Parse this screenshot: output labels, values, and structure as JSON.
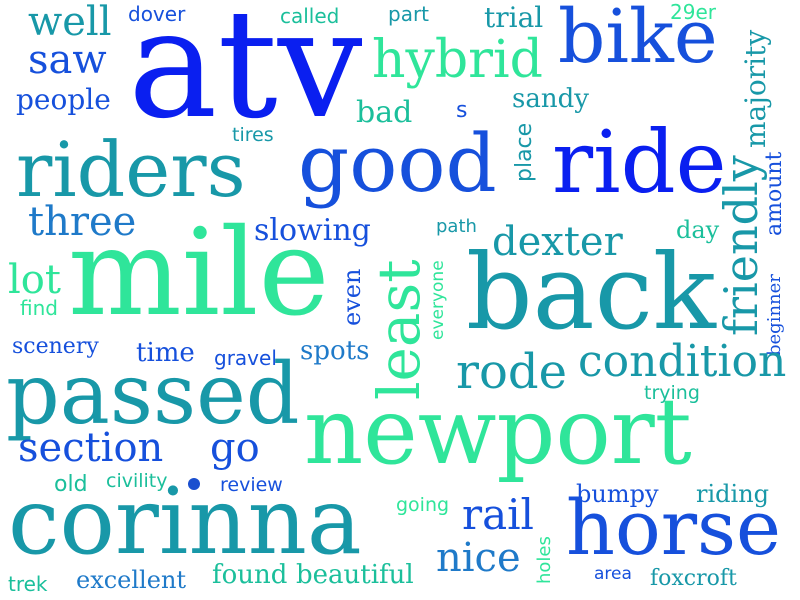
{
  "palette": {
    "blue": "#0a1ff0",
    "royal": "#1650dc",
    "azure": "#1f7ac9",
    "teal": "#1898a8",
    "sea": "#1bbf9b",
    "mint": "#2fe59a"
  },
  "words": [
    {
      "id": "atv",
      "text": "atv"
    },
    {
      "id": "newport",
      "text": "newport"
    },
    {
      "id": "mile",
      "text": "mile"
    },
    {
      "id": "back",
      "text": "back"
    },
    {
      "id": "corinna",
      "text": "corinna"
    },
    {
      "id": "passed",
      "text": "passed"
    },
    {
      "id": "ride",
      "text": "ride"
    },
    {
      "id": "good",
      "text": "good"
    },
    {
      "id": "riders",
      "text": "riders"
    },
    {
      "id": "horse",
      "text": "horse"
    },
    {
      "id": "bike",
      "text": "bike"
    },
    {
      "id": "least",
      "text": "least"
    },
    {
      "id": "hybrid",
      "text": "hybrid"
    },
    {
      "id": "condition",
      "text": "condition"
    },
    {
      "id": "rode",
      "text": "rode"
    },
    {
      "id": "section",
      "text": "section"
    },
    {
      "id": "friendly",
      "text": "friendly"
    },
    {
      "id": "three",
      "text": "three"
    },
    {
      "id": "dexter",
      "text": "dexter"
    },
    {
      "id": "nice",
      "text": "nice"
    },
    {
      "id": "rail",
      "text": "rail"
    },
    {
      "id": "go",
      "text": "go"
    },
    {
      "id": "saw",
      "text": "saw"
    },
    {
      "id": "well",
      "text": "well"
    },
    {
      "id": "majority",
      "text": "majority"
    },
    {
      "id": "lot",
      "text": "lot"
    },
    {
      "id": "slowing",
      "text": "slowing"
    },
    {
      "id": "people",
      "text": "people"
    },
    {
      "id": "bad",
      "text": "bad"
    },
    {
      "id": "sandy",
      "text": "sandy"
    },
    {
      "id": "trial",
      "text": "trial"
    },
    {
      "id": "place",
      "text": "place"
    },
    {
      "id": "amount",
      "text": "amount"
    },
    {
      "id": "spots",
      "text": "spots"
    },
    {
      "id": "time",
      "text": "time"
    },
    {
      "id": "scenery",
      "text": "scenery"
    },
    {
      "id": "even",
      "text": "even"
    },
    {
      "id": "bumpy",
      "text": "bumpy"
    },
    {
      "id": "riding",
      "text": "riding"
    },
    {
      "id": "beautiful",
      "text": "beautiful"
    },
    {
      "id": "found",
      "text": "found"
    },
    {
      "id": "excellent",
      "text": "excellent"
    },
    {
      "id": "foxcroft",
      "text": "foxcroft"
    },
    {
      "id": "beginner",
      "text": "beginner"
    },
    {
      "id": "day",
      "text": "day"
    },
    {
      "id": "dover",
      "text": "dover"
    },
    {
      "id": "called",
      "text": "called"
    },
    {
      "id": "part",
      "text": "part"
    },
    {
      "id": "29er",
      "text": "29er"
    },
    {
      "id": "tires",
      "text": "tires"
    },
    {
      "id": "s",
      "text": "s"
    },
    {
      "id": "path",
      "text": "path"
    },
    {
      "id": "everyone",
      "text": "everyone"
    },
    {
      "id": "find",
      "text": "find"
    },
    {
      "id": "gravel",
      "text": "gravel"
    },
    {
      "id": "trying",
      "text": "trying"
    },
    {
      "id": "old",
      "text": "old"
    },
    {
      "id": "civility",
      "text": "civility"
    },
    {
      "id": "review",
      "text": "review"
    },
    {
      "id": "going",
      "text": "going"
    },
    {
      "id": "holes",
      "text": "holes"
    },
    {
      "id": "area",
      "text": "area"
    },
    {
      "id": "trek",
      "text": "trek"
    }
  ]
}
